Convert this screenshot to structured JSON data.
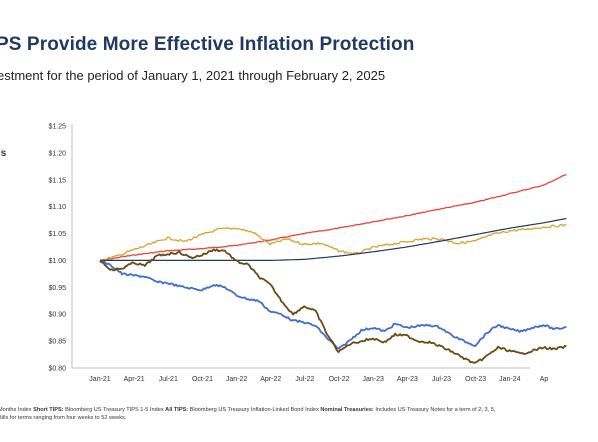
{
  "title": "PS Provide More Effective Inflation Protection",
  "subtitle": "estment for the period of January 1, 2021 through February 2, 2025",
  "legend_fragment": "ls",
  "footnote": {
    "line1_parts": [
      {
        "text": "Months Index ",
        "bold": false
      },
      {
        "text": "Short TIPS:",
        "bold": true
      },
      {
        "text": " Bloomberg US Treasury TIPS 1-5 Index ",
        "bold": false
      },
      {
        "text": "All TIPS:",
        "bold": true
      },
      {
        "text": " Bloomberg US Treasury Inflation-Linked Bond Index ",
        "bold": false
      },
      {
        "text": "Nominal Treasuries:",
        "bold": true
      },
      {
        "text": " Includes US Treasury Notes for a term of 2, 3, 5,",
        "bold": false
      }
    ],
    "line2": "Bills for terms ranging from four weeks to 52 weeks."
  },
  "chart_data": {
    "type": "line",
    "title": "",
    "xlabel": "",
    "ylabel": "",
    "x_ticks": [
      "Jan-21",
      "Apr-21",
      "Jul-21",
      "Oct-21",
      "Jan-22",
      "Apr-22",
      "Jul-22",
      "Oct-22",
      "Jan-23",
      "Apr-23",
      "Jul-23",
      "Oct-23",
      "Jan-24",
      "Ap"
    ],
    "y_ticks": [
      "$1.25",
      "$1.20",
      "$1.15",
      "$1.10",
      "$1.05",
      "$1.00",
      "$0.95",
      "$0.90",
      "$0.85",
      "$0.80"
    ],
    "ylim": [
      0.8,
      1.25
    ],
    "grid": false,
    "series": [
      {
        "color": "#e8463a",
        "values": [
          [
            "2021-01-01",
            1.0
          ],
          [
            "2021-04-01",
            1.01
          ],
          [
            "2021-07-01",
            1.018
          ],
          [
            "2021-10-01",
            1.022
          ],
          [
            "2022-01-01",
            1.028
          ],
          [
            "2022-04-01",
            1.038
          ],
          [
            "2022-07-01",
            1.05
          ],
          [
            "2022-10-01",
            1.06
          ],
          [
            "2023-01-01",
            1.072
          ],
          [
            "2023-04-01",
            1.083
          ],
          [
            "2023-07-01",
            1.096
          ],
          [
            "2023-10-01",
            1.108
          ],
          [
            "2024-01-01",
            1.124
          ],
          [
            "2024-04-01",
            1.14
          ],
          [
            "2024-06-01",
            1.16
          ]
        ]
      },
      {
        "color": "#d9a22b",
        "values": [
          [
            "2021-01-01",
            1.0
          ],
          [
            "2021-02-15",
            1.008
          ],
          [
            "2021-04-01",
            1.02
          ],
          [
            "2021-05-15",
            1.03
          ],
          [
            "2021-07-01",
            1.042
          ],
          [
            "2021-08-15",
            1.035
          ],
          [
            "2021-10-01",
            1.048
          ],
          [
            "2021-11-15",
            1.058
          ],
          [
            "2022-01-01",
            1.06
          ],
          [
            "2022-02-15",
            1.052
          ],
          [
            "2022-04-01",
            1.03
          ],
          [
            "2022-05-15",
            1.04
          ],
          [
            "2022-07-01",
            1.03
          ],
          [
            "2022-08-15",
            1.032
          ],
          [
            "2022-10-01",
            1.018
          ],
          [
            "2022-11-15",
            1.012
          ],
          [
            "2023-01-01",
            1.024
          ],
          [
            "2023-02-15",
            1.03
          ],
          [
            "2023-04-01",
            1.035
          ],
          [
            "2023-05-15",
            1.04
          ],
          [
            "2023-07-01",
            1.04
          ],
          [
            "2023-08-15",
            1.032
          ],
          [
            "2023-10-01",
            1.036
          ],
          [
            "2023-11-15",
            1.048
          ],
          [
            "2024-01-01",
            1.055
          ],
          [
            "2024-02-15",
            1.058
          ],
          [
            "2024-04-01",
            1.062
          ],
          [
            "2024-06-01",
            1.066
          ]
        ]
      },
      {
        "color": "#1f3a63",
        "values": [
          [
            "2021-01-01",
            1.0
          ],
          [
            "2021-07-01",
            1.0
          ],
          [
            "2022-01-01",
            1.0
          ],
          [
            "2022-04-01",
            1.0
          ],
          [
            "2022-07-01",
            1.002
          ],
          [
            "2022-10-01",
            1.008
          ],
          [
            "2023-01-01",
            1.016
          ],
          [
            "2023-04-01",
            1.025
          ],
          [
            "2023-07-01",
            1.036
          ],
          [
            "2023-10-01",
            1.048
          ],
          [
            "2024-01-01",
            1.06
          ],
          [
            "2024-04-01",
            1.07
          ],
          [
            "2024-06-01",
            1.078
          ]
        ]
      },
      {
        "color": "#3f6fcc",
        "values": [
          [
            "2021-01-01",
            1.0
          ],
          [
            "2021-02-01",
            0.99
          ],
          [
            "2021-03-01",
            0.975
          ],
          [
            "2021-04-01",
            0.972
          ],
          [
            "2021-05-01",
            0.97
          ],
          [
            "2021-06-01",
            0.96
          ],
          [
            "2021-07-01",
            0.958
          ],
          [
            "2021-08-01",
            0.952
          ],
          [
            "2021-09-01",
            0.948
          ],
          [
            "2021-10-01",
            0.945
          ],
          [
            "2021-11-01",
            0.955
          ],
          [
            "2021-12-01",
            0.95
          ],
          [
            "2022-01-01",
            0.935
          ],
          [
            "2022-02-01",
            0.928
          ],
          [
            "2022-03-01",
            0.925
          ],
          [
            "2022-04-01",
            0.905
          ],
          [
            "2022-05-01",
            0.9
          ],
          [
            "2022-06-01",
            0.888
          ],
          [
            "2022-07-01",
            0.885
          ],
          [
            "2022-08-01",
            0.878
          ],
          [
            "2022-09-01",
            0.855
          ],
          [
            "2022-10-01",
            0.835
          ],
          [
            "2022-11-01",
            0.852
          ],
          [
            "2022-12-01",
            0.87
          ],
          [
            "2023-01-01",
            0.875
          ],
          [
            "2023-02-01",
            0.868
          ],
          [
            "2023-03-01",
            0.882
          ],
          [
            "2023-04-01",
            0.875
          ],
          [
            "2023-05-01",
            0.878
          ],
          [
            "2023-06-01",
            0.88
          ],
          [
            "2023-07-01",
            0.875
          ],
          [
            "2023-08-01",
            0.86
          ],
          [
            "2023-09-01",
            0.85
          ],
          [
            "2023-10-01",
            0.842
          ],
          [
            "2023-11-01",
            0.865
          ],
          [
            "2023-12-01",
            0.88
          ],
          [
            "2024-01-01",
            0.872
          ],
          [
            "2024-02-01",
            0.868
          ],
          [
            "2024-03-01",
            0.875
          ],
          [
            "2024-04-01",
            0.88
          ],
          [
            "2024-05-01",
            0.872
          ],
          [
            "2024-06-01",
            0.876
          ]
        ]
      },
      {
        "color": "#6b4a12",
        "values": [
          [
            "2021-01-01",
            1.0
          ],
          [
            "2021-02-01",
            0.982
          ],
          [
            "2021-03-01",
            0.985
          ],
          [
            "2021-04-01",
            0.996
          ],
          [
            "2021-05-01",
            0.99
          ],
          [
            "2021-06-01",
            1.008
          ],
          [
            "2021-07-01",
            1.012
          ],
          [
            "2021-08-01",
            1.015
          ],
          [
            "2021-09-01",
            1.005
          ],
          [
            "2021-10-01",
            1.01
          ],
          [
            "2021-11-01",
            1.02
          ],
          [
            "2021-12-01",
            1.018
          ],
          [
            "2022-01-01",
            0.998
          ],
          [
            "2022-02-01",
            0.992
          ],
          [
            "2022-03-01",
            0.97
          ],
          [
            "2022-04-01",
            0.955
          ],
          [
            "2022-05-01",
            0.925
          ],
          [
            "2022-06-01",
            0.9
          ],
          [
            "2022-07-01",
            0.915
          ],
          [
            "2022-08-01",
            0.905
          ],
          [
            "2022-09-01",
            0.862
          ],
          [
            "2022-10-01",
            0.83
          ],
          [
            "2022-11-01",
            0.845
          ],
          [
            "2022-12-01",
            0.85
          ],
          [
            "2023-01-01",
            0.855
          ],
          [
            "2023-02-01",
            0.848
          ],
          [
            "2023-03-01",
            0.862
          ],
          [
            "2023-04-01",
            0.86
          ],
          [
            "2023-05-01",
            0.85
          ],
          [
            "2023-06-01",
            0.848
          ],
          [
            "2023-07-01",
            0.84
          ],
          [
            "2023-08-01",
            0.83
          ],
          [
            "2023-09-01",
            0.818
          ],
          [
            "2023-10-01",
            0.808
          ],
          [
            "2023-11-01",
            0.822
          ],
          [
            "2023-12-01",
            0.838
          ],
          [
            "2024-01-01",
            0.832
          ],
          [
            "2024-02-01",
            0.826
          ],
          [
            "2024-03-01",
            0.832
          ],
          [
            "2024-04-01",
            0.838
          ],
          [
            "2024-05-01",
            0.835
          ],
          [
            "2024-06-01",
            0.84
          ]
        ]
      }
    ]
  }
}
